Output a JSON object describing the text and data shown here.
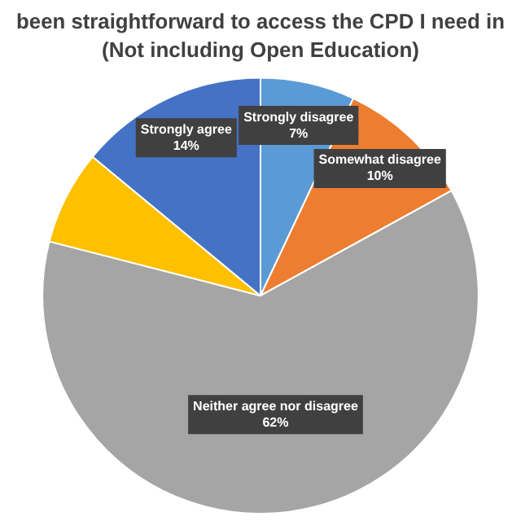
{
  "chart_data": {
    "type": "pie",
    "title": "been straightforward to access the CPD I need in",
    "subtitle": "(Not including Open Education)",
    "categories": [
      "Strongly disagree",
      "Somewhat disagree",
      "Neither agree nor disagree",
      null,
      "Strongly agree"
    ],
    "values": [
      7,
      10,
      62,
      7,
      14
    ],
    "colors": [
      "#5b9bd5",
      "#ed7d31",
      "#a5a5a5",
      "#ffc000",
      "#4472c4"
    ],
    "value_labels": [
      "7%",
      "10%",
      "62%",
      null,
      "14%"
    ]
  }
}
